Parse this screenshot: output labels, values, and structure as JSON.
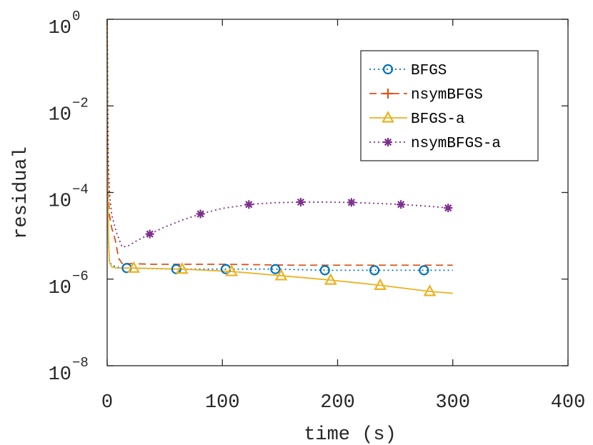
{
  "chart_data": {
    "type": "line",
    "xlabel": "time (s)",
    "ylabel": "residual",
    "xlim": [
      0,
      400
    ],
    "ylim": [
      1e-08,
      1
    ],
    "yscale": "log",
    "xticks": [
      "0",
      "100",
      "200",
      "300",
      "400"
    ],
    "yticks": [
      {
        "base": "10",
        "exp": "0"
      },
      {
        "base": "10",
        "exp": "-2"
      },
      {
        "base": "10",
        "exp": "-4"
      },
      {
        "base": "10",
        "exp": "-6"
      },
      {
        "base": "10",
        "exp": "-8"
      }
    ],
    "legend_position": "top-right",
    "grid": false,
    "series": [
      {
        "name": "BFGS",
        "color": "#0072BD",
        "line_style": "dotted",
        "marker": "circle",
        "x": [
          0,
          0.5,
          1,
          2,
          4,
          8,
          17,
          60,
          103,
          146,
          189,
          232,
          275,
          300
        ],
        "y": [
          1,
          0.001,
          1e-05,
          2.5e-06,
          2.1e-06,
          1.9e-06,
          1.8e-06,
          1.7e-06,
          1.7e-06,
          1.7e-06,
          1.6e-06,
          1.6e-06,
          1.6e-06,
          1.6e-06
        ],
        "marker_x": [
          17,
          60,
          103,
          146,
          189,
          232,
          275
        ]
      },
      {
        "name": "nsymBFGS",
        "color": "#D95319",
        "line_style": "dashed",
        "marker": "plus",
        "x": [
          0,
          0.5,
          1,
          2,
          4,
          7,
          10,
          13,
          40,
          100,
          160,
          220,
          300
        ],
        "y": [
          1,
          0.001,
          0.0001,
          3e-05,
          1.5e-05,
          8e-06,
          3e-06,
          2.3e-06,
          2.2e-06,
          2.2e-06,
          2.1e-06,
          2.1e-06,
          2.1e-06
        ],
        "marker_x": []
      },
      {
        "name": "BFGS-a",
        "color": "#EDB120",
        "line_style": "solid",
        "marker": "triangle",
        "x": [
          0,
          0.5,
          1,
          2,
          4,
          8,
          23,
          65,
          108,
          151,
          194,
          237,
          280,
          300
        ],
        "y": [
          1,
          0.001,
          1e-05,
          2.5e-06,
          1.9e-06,
          1.8e-06,
          1.8e-06,
          1.7e-06,
          1.5e-06,
          1.2e-06,
          9.5e-07,
          7.2e-07,
          5.2e-07,
          4.7e-07
        ],
        "marker_x": [
          23,
          65,
          108,
          151,
          194,
          237,
          280
        ]
      },
      {
        "name": "nsymBFGS-a",
        "color": "#7E2F8E",
        "line_style": "dotted",
        "marker": "asterisk",
        "x": [
          0,
          0.5,
          1,
          2,
          4,
          8,
          13,
          18,
          25,
          37,
          50,
          65,
          81,
          100,
          123,
          145,
          168,
          190,
          212,
          235,
          255,
          280,
          296
        ],
        "y": [
          1,
          0.01,
          0.0005,
          0.0001,
          3e-05,
          1.2e-05,
          5.5e-06,
          5.8e-06,
          7.5e-06,
          1.1e-05,
          1.6e-05,
          2.3e-05,
          3.2e-05,
          4.3e-05,
          5.3e-05,
          5.8e-05,
          6e-05,
          6e-05,
          5.9e-05,
          5.6e-05,
          5.3e-05,
          4.8e-05,
          4.4e-05
        ],
        "marker_x": [
          37,
          81,
          123,
          168,
          212,
          255,
          296
        ]
      }
    ]
  }
}
